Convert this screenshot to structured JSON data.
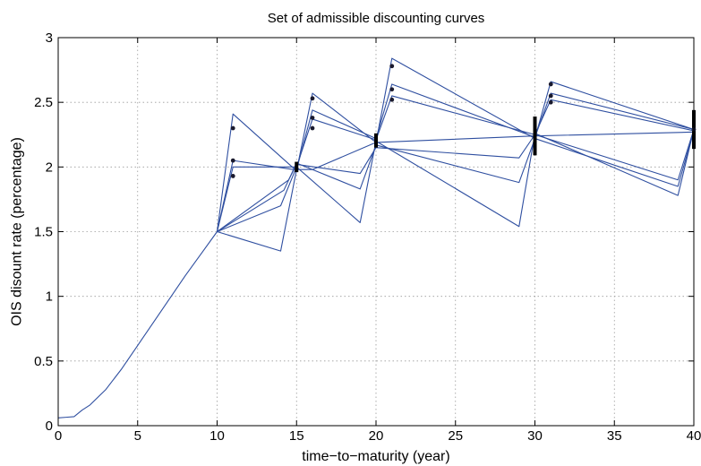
{
  "chart_data": {
    "type": "line",
    "title": "Set of admissible discounting curves",
    "xlabel": "time−to−maturity (year)",
    "ylabel": "OIS disount rate (percentage)",
    "xlim": [
      0,
      40
    ],
    "ylim": [
      0,
      3
    ],
    "xticks": [
      "0",
      "5",
      "10",
      "15",
      "20",
      "25",
      "30",
      "35",
      "40"
    ],
    "yticks": [
      "0",
      "0.5",
      "1",
      "1.5",
      "2",
      "2.5",
      "3"
    ],
    "grid": true,
    "line_color": "#2f4fa0",
    "marker_color": "#1a1a2e",
    "common_segment": {
      "x": [
        0,
        0.5,
        1,
        1.5,
        2,
        2.5,
        3,
        4,
        5,
        6,
        7,
        8,
        9,
        10
      ],
      "y": [
        0.06,
        0.065,
        0.07,
        0.12,
        0.16,
        0.22,
        0.28,
        0.44,
        0.62,
        0.8,
        0.98,
        1.16,
        1.33,
        1.5
      ]
    },
    "series": [
      {
        "x": [
          10,
          11,
          15,
          16,
          20,
          21,
          30,
          31,
          40
        ],
        "y": [
          1.5,
          2.41,
          1.97,
          2.57,
          2.19,
          2.84,
          2.22,
          2.66,
          2.29
        ]
      },
      {
        "x": [
          10,
          11,
          14.8,
          15,
          16,
          20,
          21,
          30,
          31,
          40
        ],
        "y": [
          1.5,
          2.05,
          1.98,
          1.98,
          2.44,
          2.22,
          2.64,
          2.23,
          2.57,
          2.29
        ]
      },
      {
        "x": [
          10,
          11,
          15,
          16,
          20,
          21,
          30,
          31,
          40
        ],
        "y": [
          1.5,
          2.0,
          2.0,
          2.37,
          2.21,
          2.55,
          2.25,
          2.52,
          2.28
        ]
      },
      {
        "x": [
          10,
          14.5,
          15,
          19,
          20,
          29,
          30,
          39,
          40
        ],
        "y": [
          1.5,
          1.9,
          2.02,
          1.95,
          2.15,
          2.07,
          2.25,
          1.9,
          2.29
        ]
      },
      {
        "x": [
          10,
          14.2,
          15,
          19,
          20,
          29,
          30,
          39,
          40
        ],
        "y": [
          1.5,
          1.82,
          2.03,
          1.83,
          2.17,
          1.88,
          2.22,
          1.85,
          2.28
        ]
      },
      {
        "x": [
          10,
          14,
          15,
          19,
          20,
          29,
          30,
          39,
          40
        ],
        "y": [
          1.5,
          1.7,
          2.0,
          1.57,
          2.2,
          1.54,
          2.26,
          1.78,
          2.29
        ]
      },
      {
        "x": [
          10,
          14,
          15,
          16,
          20,
          30,
          40
        ],
        "y": [
          1.5,
          1.35,
          1.98,
          1.98,
          2.19,
          2.24,
          2.27
        ]
      }
    ],
    "markers": [
      {
        "x": 11,
        "y": 2.3
      },
      {
        "x": 11,
        "y": 2.05
      },
      {
        "x": 11,
        "y": 1.93
      },
      {
        "x": 16,
        "y": 2.53
      },
      {
        "x": 16,
        "y": 2.38
      },
      {
        "x": 16,
        "y": 2.3
      },
      {
        "x": 21,
        "y": 2.78
      },
      {
        "x": 21,
        "y": 2.6
      },
      {
        "x": 21,
        "y": 2.52
      },
      {
        "x": 31,
        "y": 2.64
      },
      {
        "x": 31,
        "y": 2.55
      },
      {
        "x": 31,
        "y": 2.5
      },
      {
        "x": 40,
        "y": 2.29
      }
    ],
    "error_bars": [
      {
        "x": 15,
        "low": 1.96,
        "high": 2.04
      },
      {
        "x": 20,
        "low": 2.15,
        "high": 2.26
      },
      {
        "x": 30,
        "low": 2.09,
        "high": 2.39
      },
      {
        "x": 40,
        "low": 2.14,
        "high": 2.44
      }
    ]
  }
}
